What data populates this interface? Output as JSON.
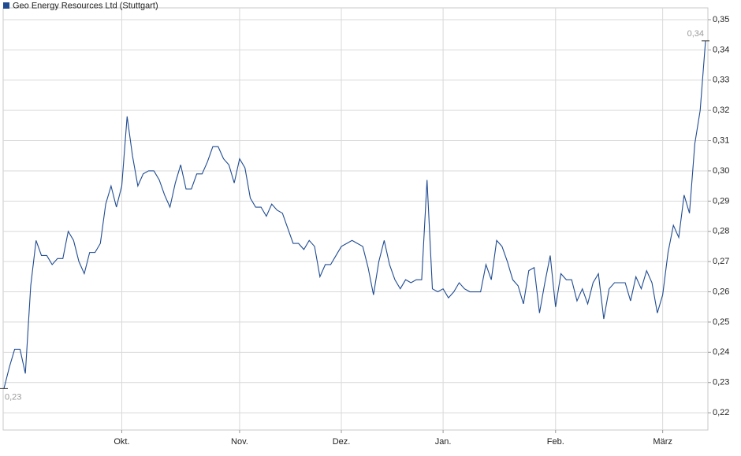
{
  "chart_data": {
    "type": "line",
    "categories": [
      null,
      null,
      null,
      null,
      null,
      null,
      null,
      null,
      null,
      null,
      null,
      null,
      null,
      null,
      null,
      null,
      null,
      null,
      null,
      null,
      null,
      null,
      "Okt.",
      null,
      null,
      null,
      null,
      null,
      null,
      null,
      null,
      null,
      null,
      null,
      null,
      null,
      null,
      null,
      null,
      null,
      null,
      null,
      null,
      null,
      "Nov.",
      null,
      null,
      null,
      null,
      null,
      null,
      null,
      null,
      null,
      null,
      null,
      null,
      null,
      null,
      null,
      null,
      null,
      null,
      "Dez.",
      null,
      null,
      null,
      null,
      null,
      null,
      null,
      null,
      null,
      null,
      null,
      null,
      null,
      null,
      null,
      null,
      null,
      null,
      "Jan.",
      null,
      null,
      null,
      null,
      null,
      null,
      null,
      null,
      null,
      null,
      null,
      null,
      null,
      null,
      null,
      null,
      null,
      null,
      null,
      null,
      "Feb.",
      null,
      null,
      null,
      null,
      null,
      null,
      null,
      null,
      null,
      null,
      null,
      null,
      null,
      null,
      null,
      null,
      null,
      null,
      null,
      "März",
      null,
      null,
      null,
      null,
      null,
      null,
      null,
      null
    ],
    "series": [
      {
        "name": "Geo Energy Resources Ltd (Stuttgart)",
        "color": "#1f4b91",
        "values": [
          0.228,
          0.235,
          0.241,
          0.241,
          0.233,
          0.262,
          0.277,
          0.272,
          0.272,
          0.269,
          0.271,
          0.271,
          0.28,
          0.277,
          0.27,
          0.266,
          0.273,
          0.273,
          0.276,
          0.289,
          0.295,
          0.288,
          0.295,
          0.318,
          0.305,
          0.295,
          0.299,
          0.3,
          0.3,
          0.297,
          0.292,
          0.288,
          0.296,
          0.302,
          0.294,
          0.294,
          0.299,
          0.299,
          0.303,
          0.308,
          0.308,
          0.304,
          0.302,
          0.296,
          0.304,
          0.301,
          0.291,
          0.288,
          0.288,
          0.285,
          0.289,
          0.287,
          0.286,
          0.281,
          0.276,
          0.276,
          0.274,
          0.277,
          0.275,
          0.265,
          0.269,
          0.269,
          0.272,
          0.275,
          0.276,
          0.277,
          0.276,
          0.275,
          0.268,
          0.259,
          0.27,
          0.277,
          0.269,
          0.264,
          0.261,
          0.264,
          0.263,
          0.264,
          0.264,
          0.297,
          0.261,
          0.26,
          0.261,
          0.258,
          0.26,
          0.263,
          0.261,
          0.26,
          0.26,
          0.26,
          0.269,
          0.264,
          0.277,
          0.275,
          0.27,
          0.264,
          0.262,
          0.256,
          0.267,
          0.268,
          0.253,
          0.263,
          0.272,
          0.255,
          0.266,
          0.264,
          0.264,
          0.257,
          0.261,
          0.256,
          0.263,
          0.266,
          0.251,
          0.261,
          0.263,
          0.263,
          0.263,
          0.257,
          0.265,
          0.261,
          0.267,
          0.263,
          0.253,
          0.259,
          0.273,
          0.282,
          0.278,
          0.292,
          0.286,
          0.309,
          0.32,
          0.343
        ],
        "value_labels": [
          "0,23",
          null,
          null,
          null,
          null,
          null,
          null,
          null,
          null,
          null,
          null,
          null,
          null,
          null,
          null,
          null,
          null,
          null,
          null,
          null,
          null,
          null,
          null,
          null,
          null,
          null,
          null,
          null,
          null,
          null,
          null,
          null,
          null,
          null,
          null,
          null,
          null,
          null,
          null,
          null,
          null,
          null,
          null,
          null,
          null,
          null,
          null,
          null,
          null,
          null,
          null,
          null,
          null,
          null,
          null,
          null,
          null,
          null,
          null,
          null,
          null,
          null,
          null,
          null,
          null,
          null,
          null,
          null,
          null,
          null,
          null,
          null,
          null,
          null,
          null,
          null,
          null,
          null,
          null,
          null,
          null,
          null,
          null,
          null,
          null,
          null,
          null,
          null,
          null,
          null,
          null,
          null,
          null,
          null,
          null,
          null,
          null,
          null,
          null,
          null,
          null,
          null,
          null,
          null,
          null,
          null,
          null,
          null,
          null,
          null,
          null,
          null,
          null,
          null,
          null,
          null,
          null,
          null,
          null,
          null,
          null,
          null,
          null,
          null,
          null,
          null,
          null,
          null,
          null,
          null,
          null,
          "0,34"
        ]
      }
    ],
    "ylim": [
      0.2143,
      0.3539
    ],
    "yticks": [
      {
        "value": 0.22,
        "label": "0,22"
      },
      {
        "value": 0.23,
        "label": "0,23"
      },
      {
        "value": 0.24,
        "label": "0,24"
      },
      {
        "value": 0.25,
        "label": "0,25"
      },
      {
        "value": 0.26,
        "label": "0,26"
      },
      {
        "value": 0.27,
        "label": "0,27"
      },
      {
        "value": 0.28,
        "label": "0,28"
      },
      {
        "value": 0.29,
        "label": "0,29"
      },
      {
        "value": 0.3,
        "label": "0,30"
      },
      {
        "value": 0.31,
        "label": "0,31"
      },
      {
        "value": 0.32,
        "label": "0,32"
      },
      {
        "value": 0.33,
        "label": "0,33"
      },
      {
        "value": 0.34,
        "label": "0,34"
      },
      {
        "value": 0.35,
        "label": "0,35"
      }
    ],
    "grid": true
  }
}
